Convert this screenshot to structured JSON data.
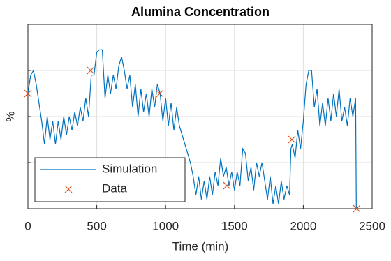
{
  "chart_data": {
    "type": "line",
    "title": "Alumina Concentration",
    "xlabel": "Time (min)",
    "ylabel": "%",
    "xlim": [
      0,
      2500
    ],
    "xticks": [
      0,
      500,
      1000,
      1500,
      2000,
      2500
    ],
    "ylim": [
      0,
      4
    ],
    "yticks": [
      1,
      2,
      3
    ],
    "grid": true,
    "legend": "lower left",
    "series": [
      {
        "name": "Simulation",
        "color": "#0072bd",
        "mode": "line",
        "x": [
          0,
          20,
          40,
          60,
          80,
          100,
          120,
          140,
          160,
          180,
          200,
          220,
          240,
          260,
          280,
          300,
          320,
          340,
          360,
          380,
          400,
          420,
          440,
          460,
          480,
          500,
          520,
          540,
          560,
          580,
          600,
          620,
          640,
          660,
          680,
          700,
          720,
          740,
          760,
          780,
          800,
          820,
          840,
          860,
          880,
          900,
          920,
          940,
          960,
          980,
          1000,
          1020,
          1040,
          1060,
          1080,
          1100,
          1120,
          1140,
          1160,
          1180,
          1200,
          1220,
          1240,
          1260,
          1280,
          1300,
          1320,
          1340,
          1360,
          1380,
          1400,
          1420,
          1440,
          1460,
          1480,
          1500,
          1520,
          1540,
          1560,
          1580,
          1600,
          1620,
          1640,
          1660,
          1680,
          1700,
          1720,
          1740,
          1760,
          1780,
          1800,
          1820,
          1840,
          1860,
          1880,
          1900,
          1910,
          1920,
          1940,
          1960,
          1980,
          2000,
          2020,
          2040,
          2060,
          2080,
          2100,
          2120,
          2140,
          2160,
          2180,
          2200,
          2220,
          2240,
          2260,
          2280,
          2300,
          2320,
          2340,
          2360,
          2380,
          2385
        ],
        "values": [
          2.5,
          2.9,
          3.0,
          2.7,
          2.3,
          1.9,
          1.4,
          2.0,
          1.5,
          1.9,
          1.4,
          1.9,
          1.5,
          2.0,
          1.6,
          2.0,
          1.7,
          2.1,
          1.8,
          2.2,
          1.9,
          2.4,
          2.0,
          2.9,
          2.9,
          3.4,
          3.45,
          3.45,
          2.4,
          2.9,
          2.5,
          2.9,
          2.6,
          3.1,
          3.3,
          3.0,
          2.6,
          2.9,
          2.2,
          2.7,
          2.0,
          2.6,
          2.1,
          2.5,
          2.0,
          2.6,
          2.2,
          2.7,
          2.5,
          1.9,
          2.4,
          1.8,
          2.3,
          1.7,
          2.2,
          1.8,
          1.6,
          1.4,
          1.2,
          1.0,
          0.7,
          0.3,
          0.7,
          0.2,
          0.6,
          0.2,
          0.7,
          0.3,
          0.8,
          0.5,
          1.1,
          0.7,
          0.9,
          0.5,
          0.8,
          0.4,
          0.8,
          0.5,
          1.3,
          1.2,
          0.6,
          0.9,
          0.4,
          1.0,
          0.7,
          1.0,
          0.6,
          0.2,
          0.7,
          0.1,
          0.5,
          0.1,
          0.6,
          0.2,
          0.5,
          0.3,
          1.3,
          1.4,
          1.1,
          1.7,
          1.3,
          1.9,
          2.7,
          3.0,
          3.0,
          2.2,
          2.6,
          1.8,
          2.3,
          1.8,
          2.4,
          1.9,
          2.5,
          2.0,
          2.6,
          1.9,
          2.2,
          1.8,
          2.4,
          2.0,
          2.4,
          0
        ]
      },
      {
        "name": "Data",
        "color": "#d95319",
        "mode": "markers",
        "x": [
          0,
          456,
          958,
          1445,
          1917,
          2388
        ],
        "values": [
          2.5,
          3.0,
          2.5,
          0.5,
          1.5,
          0
        ]
      }
    ]
  }
}
